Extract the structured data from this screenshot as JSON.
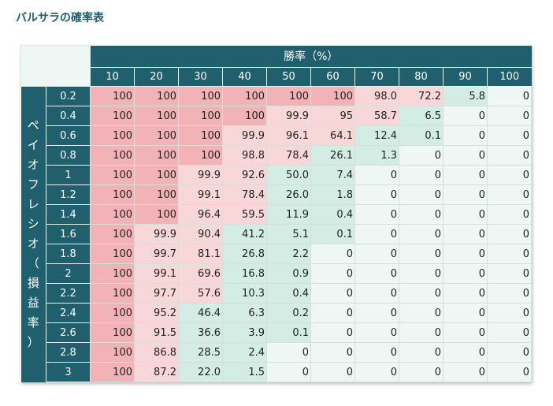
{
  "title": "バルサラの確率表",
  "header": {
    "win_rate_label": "勝率（%）",
    "columns": [
      "10",
      "20",
      "30",
      "40",
      "50",
      "60",
      "70",
      "80",
      "90",
      "100"
    ]
  },
  "row_header": {
    "label_chars": [
      "ペ",
      "イ",
      "オ",
      "フ",
      "レ",
      "シ",
      "オ",
      "（",
      "損",
      "益",
      "率",
      "）"
    ]
  },
  "colors": {
    "header_bg": "#1f5f6e",
    "title": "#1e5e6b",
    "strong_red": "#f2b3b7",
    "light_red": "#f8d7d8",
    "light_green": "#d3ece4",
    "very_light_green": "#eef7f3"
  },
  "rows": [
    {
      "label": "0.2",
      "values": [
        "100",
        "100",
        "100",
        "100",
        "100",
        "100",
        "98.0",
        "72.2",
        "5.8",
        "0"
      ],
      "tones": [
        "r",
        "r",
        "r",
        "r",
        "r",
        "r",
        "p",
        "p",
        "g",
        "w"
      ]
    },
    {
      "label": "0.4",
      "values": [
        "100",
        "100",
        "100",
        "100",
        "99.9",
        "95",
        "58.7",
        "6.5",
        "0",
        "0"
      ],
      "tones": [
        "r",
        "r",
        "r",
        "r",
        "p",
        "p",
        "p",
        "g",
        "w",
        "w"
      ]
    },
    {
      "label": "0.6",
      "values": [
        "100",
        "100",
        "100",
        "99.9",
        "96.1",
        "64.1",
        "12.4",
        "0.1",
        "0",
        "0"
      ],
      "tones": [
        "r",
        "r",
        "r",
        "p",
        "p",
        "p",
        "g",
        "g",
        "w",
        "w"
      ]
    },
    {
      "label": "0.8",
      "values": [
        "100",
        "100",
        "100",
        "98.8",
        "78.4",
        "26.1",
        "1.3",
        "0",
        "0",
        "0"
      ],
      "tones": [
        "r",
        "r",
        "r",
        "p",
        "p",
        "g",
        "g",
        "w",
        "w",
        "w"
      ]
    },
    {
      "label": "1",
      "values": [
        "100",
        "100",
        "99.9",
        "92.6",
        "50.0",
        "7.4",
        "0",
        "0",
        "0",
        "0"
      ],
      "tones": [
        "r",
        "r",
        "p",
        "p",
        "g",
        "g",
        "w",
        "w",
        "w",
        "w"
      ]
    },
    {
      "label": "1.2",
      "values": [
        "100",
        "100",
        "99.1",
        "78.4",
        "26.0",
        "1.8",
        "0",
        "0",
        "0",
        "0"
      ],
      "tones": [
        "r",
        "r",
        "p",
        "p",
        "g",
        "g",
        "w",
        "w",
        "w",
        "w"
      ]
    },
    {
      "label": "1.4",
      "values": [
        "100",
        "100",
        "96.4",
        "59.5",
        "11.9",
        "0.4",
        "0",
        "0",
        "0",
        "0"
      ],
      "tones": [
        "r",
        "r",
        "p",
        "p",
        "g",
        "g",
        "w",
        "w",
        "w",
        "w"
      ]
    },
    {
      "label": "1.6",
      "values": [
        "100",
        "99.9",
        "90.4",
        "41.2",
        "5.1",
        "0.1",
        "0",
        "0",
        "0",
        "0"
      ],
      "tones": [
        "r",
        "p",
        "p",
        "g",
        "g",
        "g",
        "w",
        "w",
        "w",
        "w"
      ]
    },
    {
      "label": "1.8",
      "values": [
        "100",
        "99.7",
        "81.1",
        "26.8",
        "2.2",
        "0",
        "0",
        "0",
        "0",
        "0"
      ],
      "tones": [
        "r",
        "p",
        "p",
        "g",
        "g",
        "w",
        "w",
        "w",
        "w",
        "w"
      ]
    },
    {
      "label": "2",
      "values": [
        "100",
        "99.1",
        "69.6",
        "16.8",
        "0.9",
        "0",
        "0",
        "0",
        "0",
        "0"
      ],
      "tones": [
        "r",
        "p",
        "p",
        "g",
        "g",
        "w",
        "w",
        "w",
        "w",
        "w"
      ]
    },
    {
      "label": "2.2",
      "values": [
        "100",
        "97.7",
        "57.6",
        "10.3",
        "0.4",
        "0",
        "0",
        "0",
        "0",
        "0"
      ],
      "tones": [
        "r",
        "p",
        "p",
        "g",
        "g",
        "w",
        "w",
        "w",
        "w",
        "w"
      ]
    },
    {
      "label": "2.4",
      "values": [
        "100",
        "95.2",
        "46.4",
        "6.3",
        "0.2",
        "0",
        "0",
        "0",
        "0",
        "0"
      ],
      "tones": [
        "r",
        "p",
        "g",
        "g",
        "g",
        "w",
        "w",
        "w",
        "w",
        "w"
      ]
    },
    {
      "label": "2.6",
      "values": [
        "100",
        "91.5",
        "36.6",
        "3.9",
        "0.1",
        "0",
        "0",
        "0",
        "0",
        "0"
      ],
      "tones": [
        "r",
        "p",
        "g",
        "g",
        "g",
        "w",
        "w",
        "w",
        "w",
        "w"
      ]
    },
    {
      "label": "2.8",
      "values": [
        "100",
        "86.8",
        "28.5",
        "2.4",
        "0",
        "0",
        "0",
        "0",
        "0",
        "0"
      ],
      "tones": [
        "r",
        "p",
        "g",
        "g",
        "w",
        "w",
        "w",
        "w",
        "w",
        "w"
      ]
    },
    {
      "label": "3",
      "values": [
        "100",
        "87.2",
        "22.0",
        "1.5",
        "0",
        "0",
        "0",
        "0",
        "0",
        "0"
      ],
      "tones": [
        "r",
        "p",
        "g",
        "g",
        "w",
        "w",
        "w",
        "w",
        "w",
        "w"
      ]
    }
  ]
}
